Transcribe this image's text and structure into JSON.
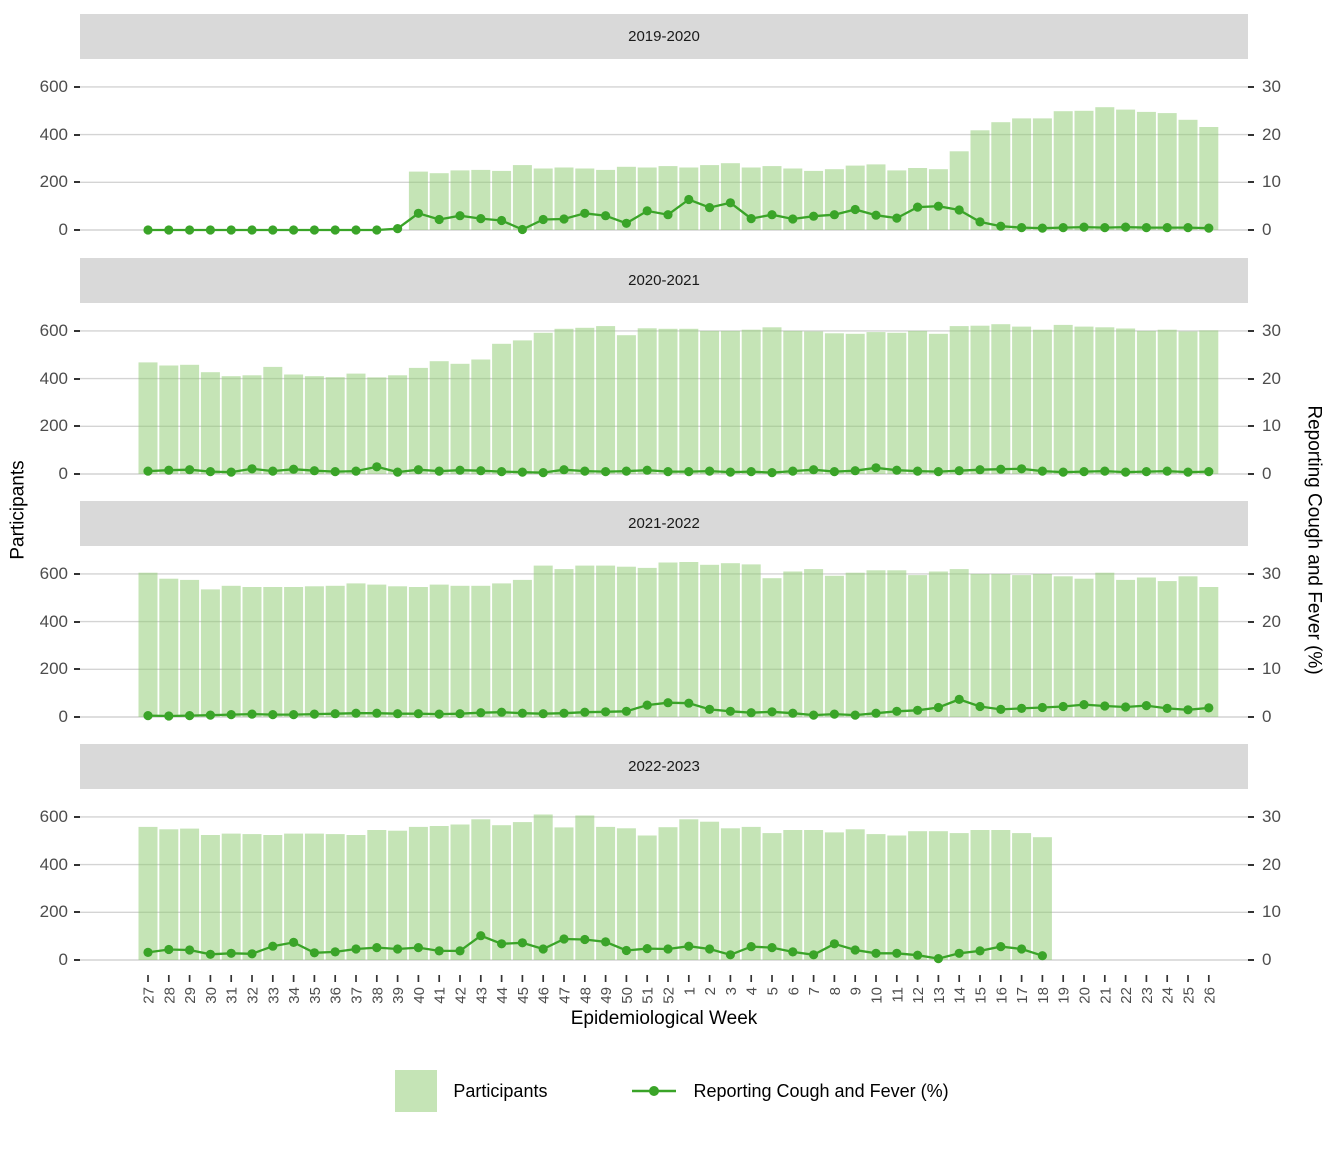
{
  "figure": {
    "y_left_title": "Participants",
    "y_right_title": "Reporting Cough and Fever (%)",
    "x_title": "Epidemiological Week",
    "legend": {
      "participants": "Participants",
      "line": "Reporting Cough and Fever (%)"
    }
  },
  "chart_data": {
    "type": "bar+line",
    "faceted": true,
    "facet_titles": [
      "2019-2020",
      "2020-2021",
      "2021-2022",
      "2022-2023"
    ],
    "xlabel": "Epidemiological Week",
    "week_labels": [
      "27",
      "28",
      "29",
      "30",
      "31",
      "32",
      "33",
      "34",
      "35",
      "36",
      "37",
      "38",
      "39",
      "40",
      "41",
      "42",
      "43",
      "44",
      "45",
      "46",
      "47",
      "48",
      "49",
      "50",
      "51",
      "52",
      "1",
      "2",
      "3",
      "4",
      "5",
      "6",
      "7",
      "8",
      "9",
      "10",
      "11",
      "12",
      "13",
      "14",
      "15",
      "16",
      "17",
      "18",
      "19",
      "20",
      "21",
      "22",
      "23",
      "24",
      "25",
      "26"
    ],
    "y_left": {
      "title": "Participants",
      "ticks": [
        0,
        200,
        400,
        600
      ]
    },
    "y_right": {
      "title": "Reporting Cough and Fever (%)",
      "ticks": [
        0,
        10,
        20,
        30
      ]
    },
    "legend_position": "bottom",
    "grid": "horizontal-major-only",
    "colors": {
      "bar": "#8cc96e",
      "bar_blended": "#c5e4b6",
      "line": "#3aa428",
      "strip_bg": "#d9d9d9",
      "grid": "#d4d4d4",
      "tick_text": "#4d4d4d",
      "tick_mark": "#333333"
    },
    "panels": [
      {
        "season": "2019-2020",
        "participants": [
          null,
          null,
          null,
          null,
          null,
          null,
          null,
          null,
          null,
          null,
          null,
          null,
          null,
          245,
          238,
          250,
          252,
          248,
          272,
          258,
          262,
          258,
          252,
          265,
          262,
          268,
          262,
          272,
          280,
          262,
          268,
          258,
          248,
          255,
          270,
          275,
          250,
          260,
          255,
          330,
          418,
          452,
          468,
          468,
          498,
          500,
          515,
          505,
          495,
          490,
          462,
          432
        ],
        "cough_fever_pct": [
          0,
          0,
          0,
          0,
          0,
          0,
          0,
          0,
          0,
          0,
          0,
          0,
          0.3,
          3.5,
          2.2,
          3.0,
          2.4,
          2.0,
          0.1,
          2.2,
          2.3,
          3.5,
          3.0,
          1.4,
          4.0,
          3.2,
          6.4,
          4.7,
          5.7,
          2.4,
          3.2,
          2.3,
          2.9,
          3.2,
          4.3,
          3.1,
          2.5,
          4.8,
          5.0,
          4.2,
          1.7,
          0.8,
          0.5,
          0.4,
          0.5,
          0.6,
          0.5,
          0.6,
          0.5,
          0.5,
          0.5,
          0.4
        ]
      },
      {
        "season": "2020-2021",
        "participants": [
          468,
          455,
          458,
          427,
          410,
          414,
          449,
          417,
          410,
          406,
          421,
          405,
          414,
          445,
          473,
          462,
          480,
          546,
          560,
          592,
          609,
          613,
          620,
          582,
          611,
          609,
          609,
          600,
          600,
          605,
          615,
          600,
          598,
          590,
          588,
          595,
          592,
          600,
          588,
          620,
          622,
          628,
          618,
          605,
          625,
          618,
          615,
          610,
          600,
          605,
          598,
          602
        ],
        "cough_fever_pct": [
          0.6,
          0.8,
          0.9,
          0.5,
          0.4,
          1.1,
          0.6,
          1.0,
          0.7,
          0.5,
          0.6,
          1.5,
          0.4,
          0.9,
          0.6,
          0.8,
          0.7,
          0.5,
          0.4,
          0.3,
          0.9,
          0.6,
          0.5,
          0.6,
          0.8,
          0.5,
          0.5,
          0.6,
          0.4,
          0.5,
          0.3,
          0.6,
          0.9,
          0.5,
          0.7,
          1.3,
          0.8,
          0.6,
          0.5,
          0.7,
          0.9,
          1.0,
          1.1,
          0.6,
          0.4,
          0.5,
          0.6,
          0.4,
          0.5,
          0.6,
          0.4,
          0.5
        ]
      },
      {
        "season": "2021-2022",
        "participants": [
          605,
          580,
          575,
          535,
          550,
          545,
          545,
          545,
          548,
          550,
          560,
          555,
          548,
          545,
          555,
          550,
          550,
          560,
          575,
          635,
          620,
          635,
          635,
          630,
          625,
          648,
          650,
          638,
          645,
          640,
          582,
          610,
          620,
          592,
          605,
          615,
          615,
          595,
          610,
          620,
          600,
          600,
          595,
          600,
          590,
          580,
          605,
          575,
          585,
          570,
          590,
          545
        ],
        "cough_fever_pct": [
          0.3,
          0.2,
          0.3,
          0.4,
          0.5,
          0.6,
          0.5,
          0.5,
          0.6,
          0.7,
          0.8,
          0.8,
          0.7,
          0.7,
          0.6,
          0.7,
          0.9,
          1.0,
          0.8,
          0.7,
          0.8,
          1.0,
          1.1,
          1.2,
          2.5,
          3.0,
          2.9,
          1.6,
          1.2,
          0.9,
          1.1,
          0.8,
          0.4,
          0.6,
          0.4,
          0.8,
          1.2,
          1.4,
          2.0,
          3.7,
          2.2,
          1.6,
          1.8,
          2.0,
          2.2,
          2.6,
          2.3,
          2.1,
          2.4,
          1.8,
          1.5,
          1.9
        ]
      },
      {
        "season": "2022-2023",
        "participants": [
          558,
          548,
          551,
          524,
          530,
          528,
          524,
          530,
          530,
          528,
          524,
          545,
          542,
          558,
          562,
          568,
          590,
          565,
          578,
          610,
          556,
          606,
          558,
          552,
          522,
          557,
          590,
          580,
          552,
          558,
          532,
          545,
          545,
          535,
          548,
          528,
          522,
          540,
          540,
          532,
          545,
          545,
          532,
          515,
          null,
          null,
          null,
          null,
          null,
          null,
          null,
          null
        ],
        "cough_fever_pct": [
          1.6,
          2.2,
          2.1,
          1.2,
          1.4,
          1.3,
          2.9,
          3.7,
          1.5,
          1.7,
          2.3,
          2.6,
          2.3,
          2.6,
          1.9,
          1.9,
          5.1,
          3.4,
          3.6,
          2.3,
          4.4,
          4.3,
          3.8,
          2.0,
          2.4,
          2.3,
          2.9,
          2.3,
          1.1,
          2.8,
          2.6,
          1.7,
          1.1,
          3.4,
          2.1,
          1.4,
          1.4,
          1.0,
          0.3,
          1.4,
          1.9,
          2.8,
          2.3,
          0.9,
          null,
          null,
          null,
          null,
          null,
          null,
          null,
          null
        ]
      }
    ]
  }
}
